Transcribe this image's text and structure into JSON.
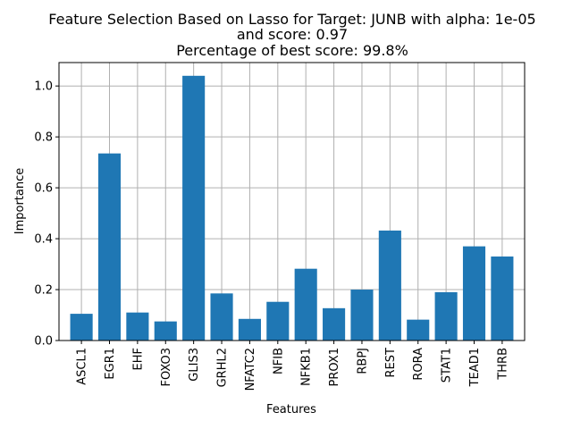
{
  "chart_data": {
    "type": "bar",
    "title_lines": [
      "Feature Selection Based on Lasso for Target: JUNB with alpha: 1e-05",
      "and score: 0.97",
      "Percentage of best score: 99.8%"
    ],
    "xlabel": "Features",
    "ylabel": "Importance",
    "categories": [
      "ASCL1",
      "EGR1",
      "EHF",
      "FOXO3",
      "GLIS3",
      "GRHL2",
      "NFATC2",
      "NFIB",
      "NFKB1",
      "PROX1",
      "RBPJ",
      "REST",
      "RORA",
      "STAT1",
      "TEAD1",
      "THRB"
    ],
    "values": [
      0.105,
      0.735,
      0.11,
      0.075,
      1.04,
      0.185,
      0.085,
      0.152,
      0.282,
      0.127,
      0.2,
      0.432,
      0.082,
      0.19,
      0.37,
      0.33
    ],
    "ylim": [
      0,
      1.092
    ],
    "yticks": [
      0.0,
      0.2,
      0.4,
      0.6,
      0.8,
      1.0
    ],
    "ytick_labels": [
      "0.0",
      "0.2",
      "0.4",
      "0.6",
      "0.8",
      "1.0"
    ],
    "grid": true,
    "bar_color": "#1f77b4",
    "grid_color": "#b0b0b0"
  }
}
